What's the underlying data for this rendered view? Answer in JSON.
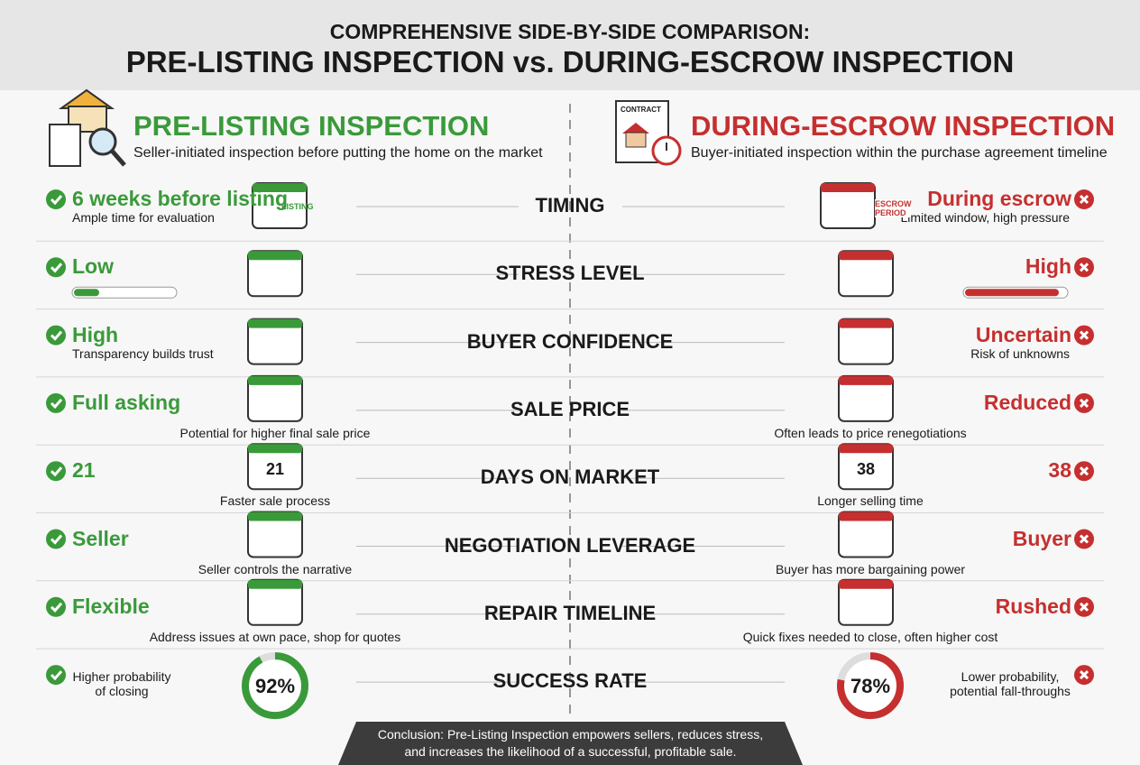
{
  "header": {
    "subtitle": "COMPREHENSIVE SIDE-BY-SIDE COMPARISON:",
    "title": "PRE-LISTING INSPECTION vs. DURING-ESCROW INSPECTION"
  },
  "left": {
    "title": "PRE-LISTING INSPECTION",
    "description": "Seller-initiated inspection before putting the home on the market"
  },
  "right": {
    "title": "DURING-ESCROW INSPECTION",
    "description": "Buyer-initiated inspection within the purchase agreement timeline",
    "icon_text": "CONTRACT"
  },
  "rows": [
    {
      "label": "TIMING",
      "left": {
        "value": "6 weeks before listing",
        "note": "Ample time for evaluation",
        "icon_text": "LISTING"
      },
      "right": {
        "value": "During escrow",
        "note": "Limited window, high pressure",
        "icon_text": "ESCROW PERIOD"
      }
    },
    {
      "label": "STRESS LEVEL",
      "left": {
        "value": "Low"
      },
      "right": {
        "value": "High"
      }
    },
    {
      "label": "BUYER CONFIDENCE",
      "left": {
        "value": "High",
        "note": "Transparency builds trust"
      },
      "right": {
        "value": "Uncertain",
        "note": "Risk of unknowns"
      }
    },
    {
      "label": "SALE PRICE",
      "left": {
        "value": "Full asking",
        "note": "Potential for higher final sale price"
      },
      "right": {
        "value": "Reduced",
        "note": "Often leads to price renegotiations"
      }
    },
    {
      "label": "DAYS ON MARKET",
      "left": {
        "value": "21",
        "note": "Faster sale process"
      },
      "right": {
        "value": "38",
        "note": "Longer selling time"
      }
    },
    {
      "label": "NEGOTIATION LEVERAGE",
      "left": {
        "value": "Seller",
        "note": "Seller controls the narrative"
      },
      "right": {
        "value": "Buyer",
        "note": "Buyer has more bargaining power"
      }
    },
    {
      "label": "REPAIR TIMELINE",
      "left": {
        "value": "Flexible",
        "note": "Address issues at own pace, shop for quotes"
      },
      "right": {
        "value": "Rushed",
        "note": "Quick fixes needed to close, often higher cost"
      }
    },
    {
      "label": "SUCCESS RATE",
      "left": {
        "rate": {
          "value": 92,
          "label": "92%"
        },
        "note": "Higher probability of closing"
      },
      "right": {
        "rate": {
          "value": 78,
          "label": "78%"
        },
        "note": "Lower probability, potential fall-throughs"
      }
    }
  ],
  "conclusion": [
    "Conclusion: Pre-Listing Inspection empowers sellers, reduces stress,",
    "and increases the likelihood of a successful, profitable sale."
  ]
}
